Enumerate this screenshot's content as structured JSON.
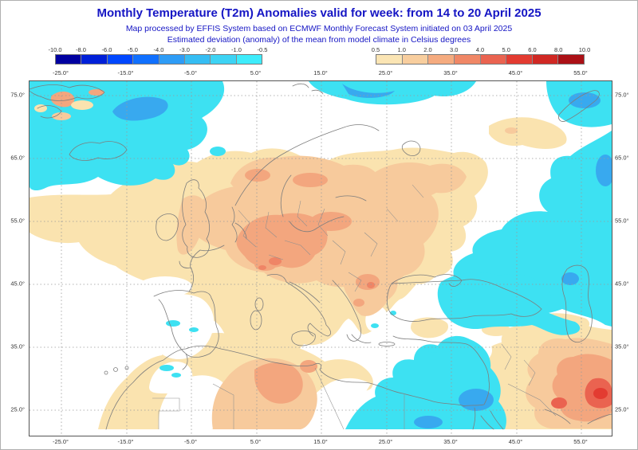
{
  "header": {
    "title": "Monthly Temperature (T2m) Anomalies valid for week: from 14 to 20 April 2025",
    "subtitle1": "Map processed by EFFIS System based on ECMWF Monthly Forecast System initiated on 03 April 2025",
    "subtitle2": "Estimated deviation (anomaly) of the mean from model climate in Celsius degrees"
  },
  "legend": {
    "negative": {
      "ticks": [
        "-10.0",
        "-8.0",
        "-6.0",
        "-5.0",
        "-4.0",
        "-3.0",
        "-2.0",
        "-1.0",
        "-0.5"
      ],
      "colors": [
        "#0000a0",
        "#0020d8",
        "#0047ff",
        "#1070ff",
        "#2e9cf6",
        "#35bdf3",
        "#3dd3f4",
        "#3eecfb"
      ]
    },
    "positive": {
      "ticks": [
        "0.5",
        "1.0",
        "2.0",
        "3.0",
        "4.0",
        "5.0",
        "6.0",
        "8.0",
        "10.0"
      ],
      "colors": [
        "#fbe5b4",
        "#f8ce9e",
        "#f5ab7f",
        "#f08766",
        "#ea6350",
        "#e33b31",
        "#d02823",
        "#ab1016"
      ]
    },
    "units": "Celsius degrees"
  },
  "map": {
    "lon_labels": [
      "-25.0°",
      "-15.0°",
      "-5.0°",
      "5.0°",
      "15.0°",
      "25.0°",
      "35.0°",
      "45.0°",
      "55.0°"
    ],
    "lat_labels": [
      "75.0°",
      "65.0°",
      "55.0°",
      "45.0°",
      "35.0°",
      "25.0°"
    ]
  },
  "colors": {
    "title_blue": "#1515c4",
    "map_cold_light": "#3de1f2",
    "map_cold_mid": "#38a9ef",
    "map_warm_05_1": "#fae3af",
    "map_warm_1_2": "#f7ca9c",
    "map_warm_2_3": "#f3a67e",
    "map_warm_3_4": "#ef8566",
    "map_warm_4_5": "#ea6350",
    "map_warm_5_6": "#e33b31"
  }
}
